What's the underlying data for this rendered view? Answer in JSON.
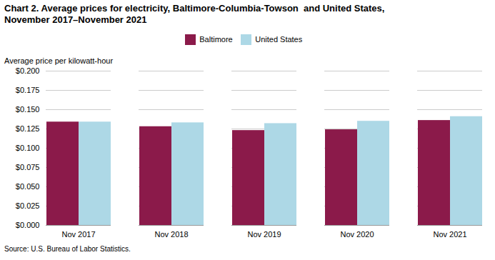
{
  "chart_data": {
    "type": "bar",
    "title": "Chart 2. Average prices for electricity, Baltimore-Columbia-Towson  and United States,\nNovember 2017–November 2021",
    "ylabel": "Average price per kilowatt-hour",
    "caption": "Source: U.S. Bureau of Labor Statistics.",
    "categories": [
      "Nov 2017",
      "Nov 2018",
      "Nov 2019",
      "Nov 2020",
      "Nov 2021"
    ],
    "series": [
      {
        "name": "Baltimore",
        "color": "#8B1A4A",
        "values": [
          0.134,
          0.128,
          0.123,
          0.124,
          0.136
        ]
      },
      {
        "name": "United States",
        "color": "#ADD8E6",
        "values": [
          0.134,
          0.133,
          0.132,
          0.135,
          0.141
        ]
      }
    ],
    "ylim": [
      0.0,
      0.2
    ],
    "yticks": [
      {
        "value": 0.0,
        "label": "$0.000"
      },
      {
        "value": 0.025,
        "label": "$0.025"
      },
      {
        "value": 0.05,
        "label": "$0.050"
      },
      {
        "value": 0.075,
        "label": "$0.075"
      },
      {
        "value": 0.1,
        "label": "$0.100"
      },
      {
        "value": 0.125,
        "label": "$0.125"
      },
      {
        "value": 0.15,
        "label": "$0.150"
      },
      {
        "value": 0.175,
        "label": "$0.175"
      },
      {
        "value": 0.2,
        "label": "$0.200"
      }
    ],
    "grid": true,
    "legend": "top"
  }
}
